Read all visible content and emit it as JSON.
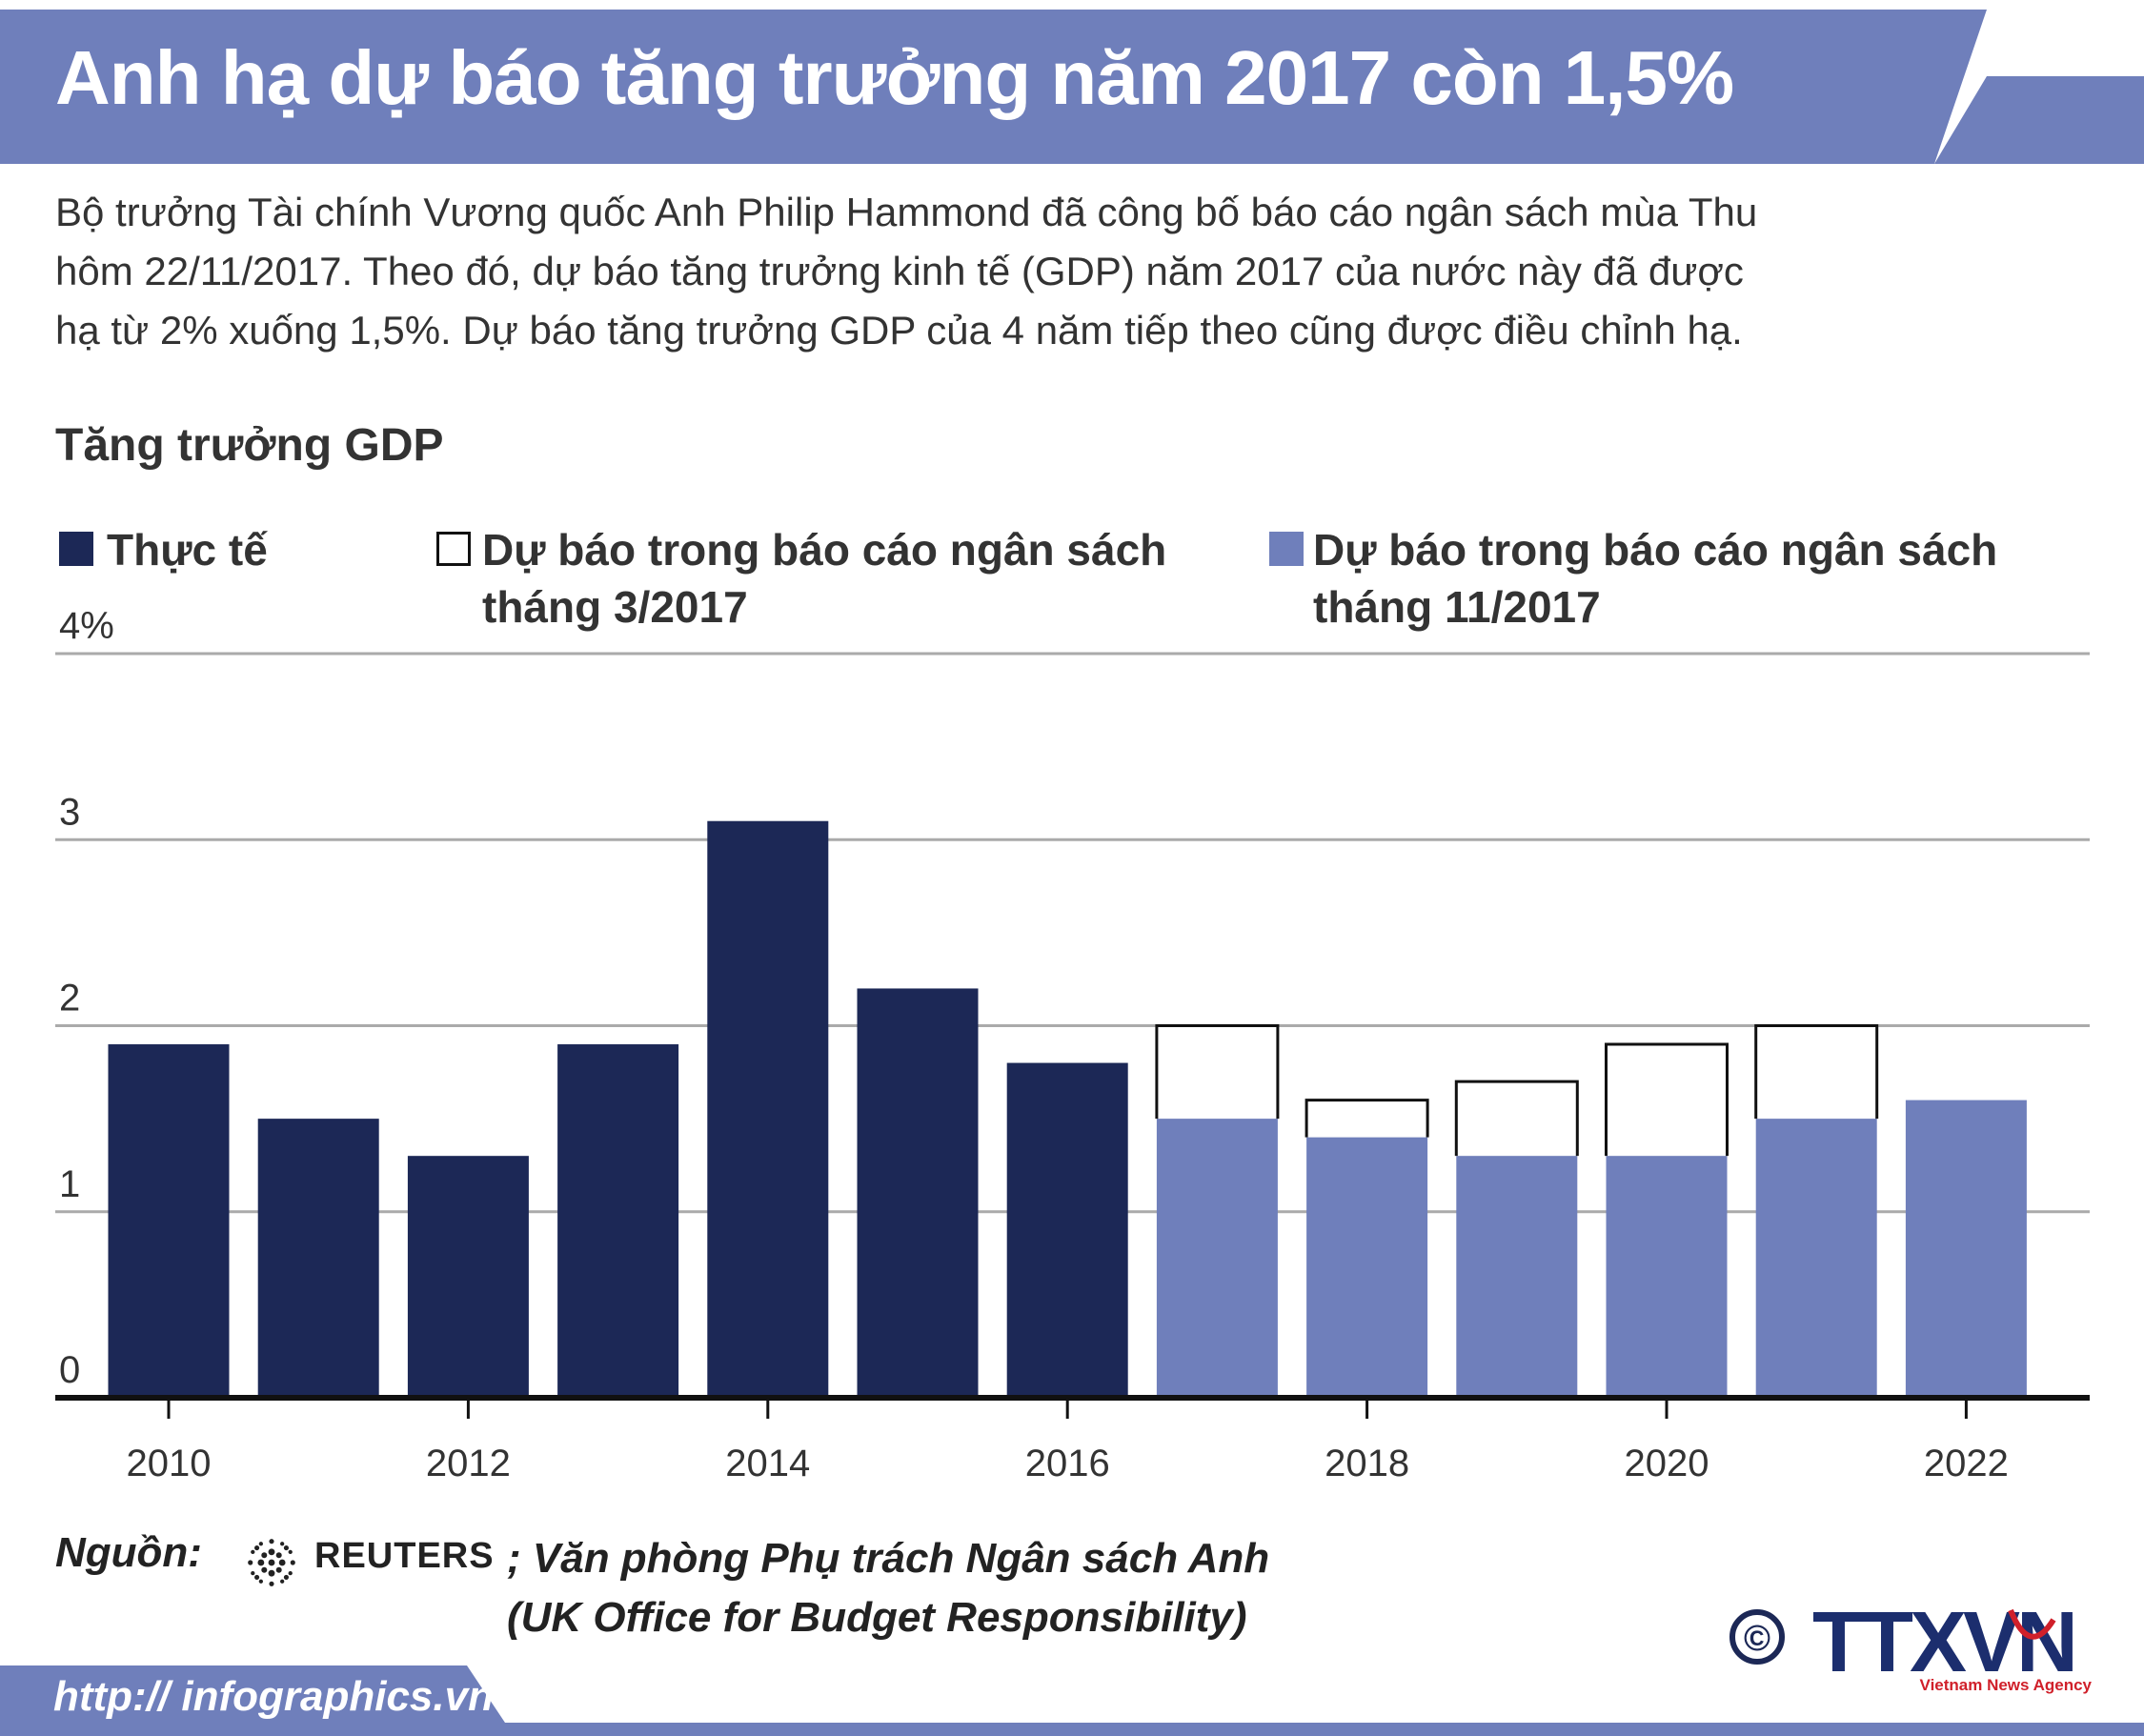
{
  "header": {
    "title": "Anh hạ dự báo tăng trưởng năm 2017 còn 1,5%",
    "band_color": "#6f7fbb"
  },
  "intro": {
    "lines": [
      "Bộ trưởng Tài chính Vương quốc Anh Philip Hammond đã công bố báo cáo ngân sách mùa Thu",
      "hôm 22/11/2017. Theo đó, dự báo tăng trưởng kinh tế (GDP) năm 2017 của nước này đã được",
      "hạ từ 2% xuống 1,5%. Dự báo tăng trưởng GDP của 4 năm tiếp theo cũng được điều chỉnh hạ."
    ]
  },
  "legend": [
    {
      "label": "Thực tế",
      "color": "#1c2856",
      "style": "solid"
    },
    {
      "label_line1": "Dự báo trong báo cáo ngân sách",
      "label_line2": "tháng 3/2017",
      "color": "#111111",
      "style": "outline"
    },
    {
      "label_line1": "Dự báo trong báo cáo ngân sách",
      "label_line2": "tháng 11/2017",
      "color": "#6f7fbb",
      "style": "solid"
    }
  ],
  "chart_data": {
    "type": "bar",
    "title": "Tăng trưởng GDP",
    "xlabel": "",
    "ylabel": "",
    "ylim": [
      0,
      4
    ],
    "y_ticks": [
      "0",
      "1",
      "2",
      "3",
      "4%"
    ],
    "x_tick_labels": [
      "2010",
      "2012",
      "2014",
      "2016",
      "2018",
      "2020",
      "2022"
    ],
    "categories": [
      "2010",
      "2011",
      "2012",
      "2013",
      "2014",
      "2015",
      "2016",
      "2017",
      "2018",
      "2019",
      "2020",
      "2021",
      "2022"
    ],
    "series": [
      {
        "name": "Thực tế",
        "color": "#1c2856",
        "values": [
          1.9,
          1.5,
          1.3,
          1.9,
          3.1,
          2.2,
          1.8,
          null,
          null,
          null,
          null,
          null,
          null
        ]
      },
      {
        "name": "Dự báo trong báo cáo ngân sách tháng 3/2017",
        "color": "#111111",
        "values": [
          null,
          null,
          null,
          null,
          null,
          null,
          null,
          2.0,
          1.6,
          1.7,
          1.9,
          2.0,
          null
        ]
      },
      {
        "name": "Dự báo trong báo cáo ngân sách tháng 11/2017",
        "color": "#6f7fbb",
        "values": [
          null,
          null,
          null,
          null,
          null,
          null,
          null,
          1.5,
          1.4,
          1.3,
          1.3,
          1.5,
          1.6
        ]
      }
    ],
    "grid": true
  },
  "source": {
    "label": "Nguồn:",
    "reuters": "REUTERS",
    "org_line1": "; Văn phòng Phụ trách Ngân sách Anh",
    "org_line2": "(UK Office for Budget Responsibility)"
  },
  "footer": {
    "url": "http:// infographics.vn",
    "logo_text": "TTXVN",
    "logo_sub": "Vietnam News Agency",
    "copyright": "©"
  }
}
